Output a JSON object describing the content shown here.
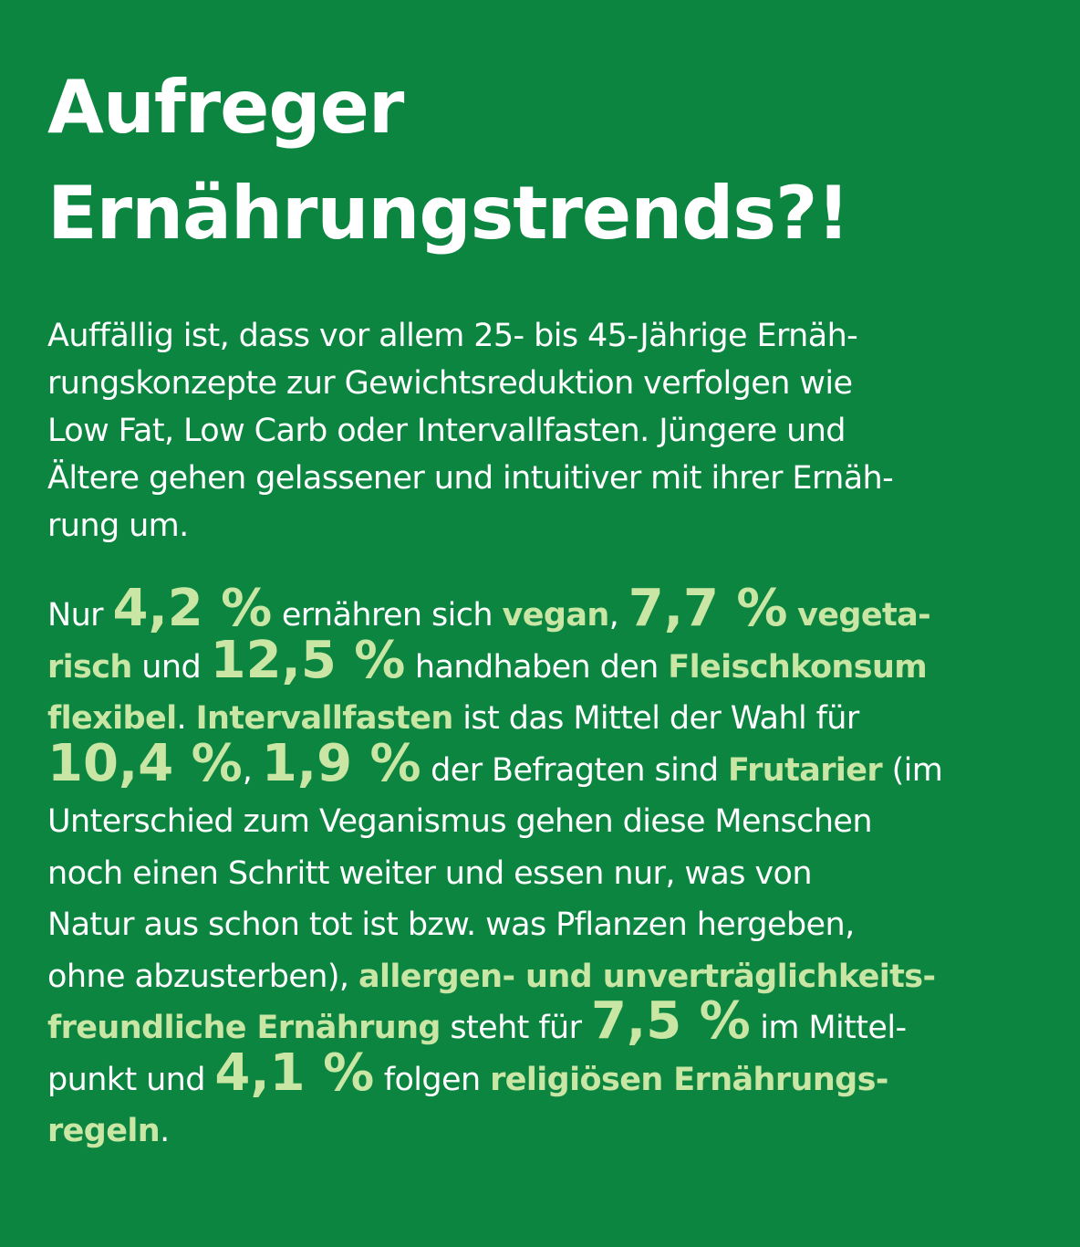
{
  "title": {
    "line1": "Aufreger",
    "line2": "Ernährungstrends?!"
  },
  "intro": {
    "line1": "Auffällig ist, dass vor allem 25- bis 45-Jährige Ernäh-",
    "line2": "rungskonzepte zur Gewichtsreduktion verfolgen wie",
    "line3": "Low Fat, Low Carb oder Intervallfasten. Jüngere und",
    "line4": "Ältere gehen gelassener und intuitiver mit ihrer Ernäh-",
    "line5": "rung um."
  },
  "stats": {
    "t1": "Nur ",
    "n1": "4,2 %",
    "t2": " ernähren sich ",
    "h1": "vegan",
    "t3": ", ",
    "n2": "7,7 %",
    "t4": " ",
    "h2": "vegeta-",
    "h2b": "risch",
    "t5": " und ",
    "n3": "12,5 %",
    "t6": " handhaben den ",
    "h3": "Fleischkonsum",
    "h3b": "flexibel",
    "t7": ". ",
    "h4": "Intervallfasten",
    "t8": " ist das Mittel der Wahl für",
    "n4": "10,4 %",
    "t9": ", ",
    "n5": "1,9 %",
    "t10": " der Befragten sind ",
    "h5": "Frutarier",
    "t11": " (im",
    "t12": "Unterschied zum Veganismus gehen diese Menschen",
    "t13": "noch einen Schritt weiter und essen nur, was von",
    "t14": "Natur aus schon tot ist bzw. was Pflanzen hergeben,",
    "t15": "ohne abzusterben), ",
    "h6": "allergen- und unverträglichkeits-",
    "h6b": "freundliche Ernährung",
    "t16": " steht für ",
    "n6": "7,5 %",
    "t17": " im Mittel-",
    "t18": "punkt und ",
    "n7": "4,1 %",
    "t19": " folgen ",
    "h7": "religiösen Ernährungs-",
    "h7b": "regeln",
    "t20": "."
  },
  "colors": {
    "background": "#0c8541",
    "text": "#ffffff",
    "highlight": "#c9e6a4"
  }
}
